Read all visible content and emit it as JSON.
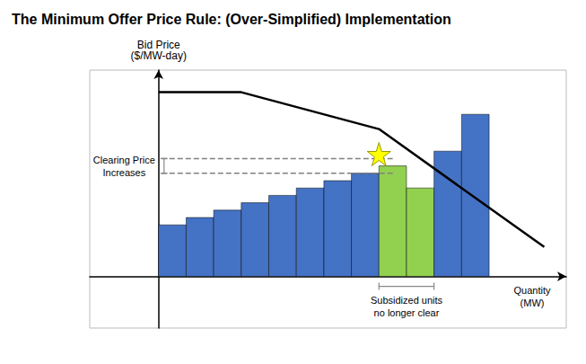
{
  "chart_data": {
    "type": "bar",
    "title": "The Minimum Offer Price Rule: (Over-Simplified) Implementation",
    "ylabel": "Bid Price\n($/MW-day)",
    "xlabel": "Quantity\n(MW)",
    "xlim": [
      -2.5,
      14.8
    ],
    "ylim": [
      -3.5,
      14
    ],
    "tick_labels": false,
    "grid": false,
    "series": [
      {
        "type": "bar",
        "values": [
          3.5,
          4.0,
          4.5,
          5.0,
          5.5,
          6.0,
          6.5,
          7.0,
          7.5,
          6.0,
          8.5,
          11.0
        ],
        "colors": [
          "#4472C4",
          "#4472C4",
          "#4472C4",
          "#4472C4",
          "#4472C4",
          "#4472C4",
          "#4472C4",
          "#4472C4",
          "#92D050",
          "#92D050",
          "#4472C4",
          "#4472C4"
        ]
      },
      {
        "type": "line",
        "x": [
          0,
          3,
          8,
          14
        ],
        "values": [
          12.5,
          12.5,
          10.0,
          2.0
        ],
        "color": "#000000",
        "line_style": "solid"
      },
      {
        "type": "line",
        "x": [
          0.1,
          8.5
        ],
        "values": [
          8.0,
          8.0
        ],
        "color": "gray",
        "line_style": "dashed"
      },
      {
        "type": "line",
        "x": [
          0.1,
          8.5
        ],
        "values": [
          7.0,
          7.0
        ],
        "color": "gray",
        "line_style": "dashed"
      },
      {
        "type": "scatter",
        "x": [
          8.0
        ],
        "values": [
          8.3
        ],
        "color": "yellow",
        "marker": "star"
      }
    ],
    "annotations": [
      "Clearing Price\nIncreases",
      "Subsidized units\nno longer clear"
    ]
  }
}
